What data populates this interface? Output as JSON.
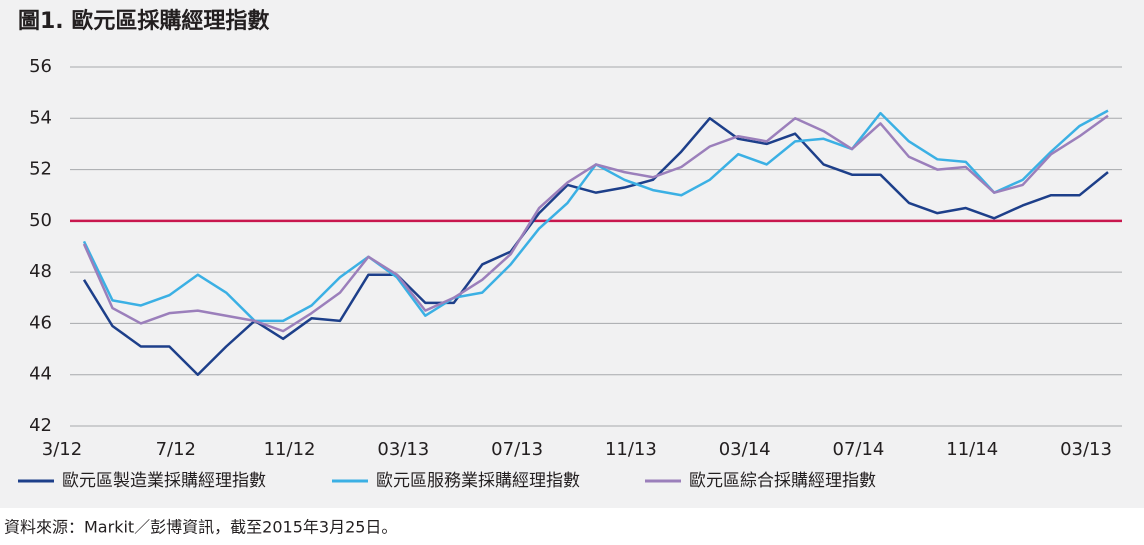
{
  "chart_data": {
    "type": "line",
    "title": "圖1. 歐元區採購經理指數",
    "categories": [
      "3/12",
      null,
      null,
      null,
      "7/12",
      null,
      null,
      null,
      "11/12",
      null,
      null,
      null,
      "03/13",
      null,
      null,
      null,
      "07/13",
      null,
      null,
      null,
      "11/13",
      null,
      null,
      null,
      "03/14",
      null,
      null,
      null,
      "07/14",
      null,
      null,
      null,
      "11/14",
      null,
      null,
      null,
      "03/13"
    ],
    "series": [
      {
        "name": "歐元區製造業採購經理指數",
        "color": "#1d3f8a",
        "values": [
          47.7,
          45.9,
          45.1,
          45.1,
          44.0,
          45.1,
          46.1,
          45.4,
          46.2,
          46.1,
          47.9,
          47.9,
          46.8,
          46.8,
          48.3,
          48.8,
          50.3,
          51.4,
          51.1,
          51.3,
          51.6,
          52.7,
          54.0,
          53.2,
          53.0,
          53.4,
          52.2,
          51.8,
          51.8,
          50.7,
          50.3,
          50.5,
          50.1,
          50.6,
          51.0,
          51.0,
          51.9
        ]
      },
      {
        "name": "歐元區服務業採購經理指數",
        "color": "#3bb0e4",
        "values": [
          49.2,
          46.9,
          46.7,
          47.1,
          47.9,
          47.2,
          46.1,
          46.1,
          46.7,
          47.8,
          48.6,
          47.8,
          46.3,
          47.0,
          47.2,
          48.3,
          49.7,
          50.7,
          52.2,
          51.6,
          51.2,
          51.0,
          51.6,
          52.6,
          52.2,
          53.1,
          53.2,
          52.8,
          54.2,
          53.1,
          52.4,
          52.3,
          51.1,
          51.6,
          52.7,
          53.7,
          54.3
        ]
      },
      {
        "name": "歐元區綜合採購經理指數",
        "color": "#9b7fbb",
        "values": [
          49.1,
          46.6,
          46.0,
          46.4,
          46.5,
          46.3,
          46.1,
          45.7,
          46.4,
          47.2,
          48.6,
          47.9,
          46.5,
          47.0,
          47.7,
          48.7,
          50.5,
          51.5,
          52.2,
          51.9,
          51.7,
          52.1,
          52.9,
          53.3,
          53.1,
          54.0,
          53.5,
          52.8,
          53.8,
          52.5,
          52.0,
          52.1,
          51.1,
          51.4,
          52.6,
          53.3,
          54.1
        ]
      }
    ],
    "ylim": [
      42,
      56
    ],
    "yticks": [
      42,
      44,
      46,
      48,
      50,
      52,
      54,
      56
    ],
    "grid": true,
    "reference_line": {
      "value": 50,
      "color": "#c8174e"
    },
    "source": "資料來源：Markit／彭博資訊，截至2015年3月25日。"
  }
}
